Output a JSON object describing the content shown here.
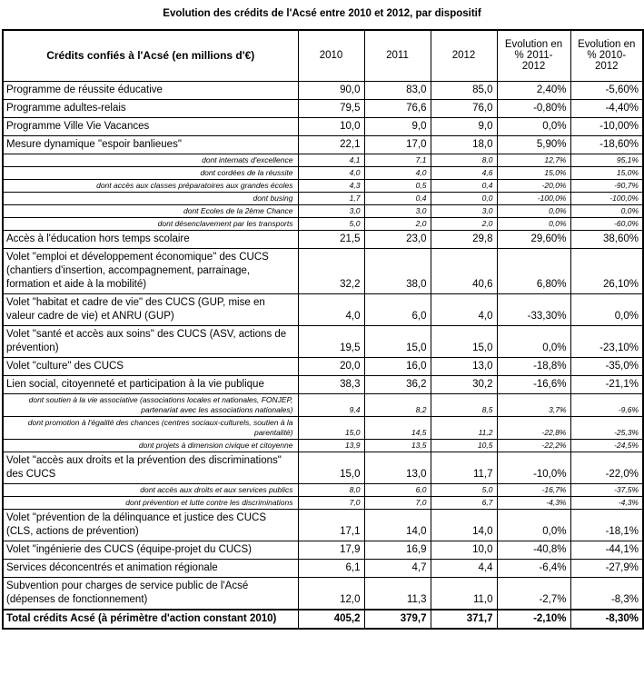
{
  "title": "Evolution des crédits de l'Acsé entre 2010 et 2012, par dispositif",
  "table": {
    "header": {
      "label": "Crédits confiés à l'Acsé (en millions d'€)",
      "col_2010": "2010",
      "col_2011": "2011",
      "col_2012": "2012",
      "evol_2011_2012": "Evolution en\n% 2011-\n2012",
      "evol_2010_2012": "Evolution en\n% 2010-\n2012"
    },
    "rows": [
      {
        "type": "main",
        "label": "Programme de réussite éducative",
        "values": [
          "90,0",
          "83,0",
          "85,0",
          "2,40%",
          "-5,60%"
        ]
      },
      {
        "type": "main",
        "label": "Programme adultes-relais",
        "values": [
          "79,5",
          "76,6",
          "76,0",
          "-0,80%",
          "-4,40%"
        ]
      },
      {
        "type": "main",
        "label": "Programme Ville Vie Vacances",
        "values": [
          "10,0",
          "9,0",
          "9,0",
          "0,0%",
          "-10,00%"
        ]
      },
      {
        "type": "main",
        "label": "Mesure dynamique \"espoir banlieues\"",
        "values": [
          "22,1",
          "17,0",
          "18,0",
          "5,90%",
          "-18,60%"
        ]
      },
      {
        "type": "sub",
        "label": "dont internats d'excellence",
        "values": [
          "4,1",
          "7,1",
          "8,0",
          "12,7%",
          "95,1%"
        ]
      },
      {
        "type": "sub",
        "label": "dont cordées de la réussite",
        "values": [
          "4,0",
          "4,0",
          "4,6",
          "15,0%",
          "15,0%"
        ]
      },
      {
        "type": "sub",
        "label": "dont accès aux classes préparatoires aux grandes écoles",
        "values": [
          "4,3",
          "0,5",
          "0,4",
          "-20,0%",
          "-90,7%"
        ]
      },
      {
        "type": "sub",
        "label": "dont busing",
        "values": [
          "1,7",
          "0,4",
          "0,0",
          "-100,0%",
          "-100,0%"
        ]
      },
      {
        "type": "sub",
        "label": "dont Ecoles de la 2ème Chance",
        "values": [
          "3,0",
          "3,0",
          "3,0",
          "0,0%",
          "0,0%"
        ]
      },
      {
        "type": "sub",
        "label": "dont désenclavement par les transports",
        "values": [
          "5,0",
          "2,0",
          "2,0",
          "0,0%",
          "-60,0%"
        ]
      },
      {
        "type": "main",
        "label": "Accès à l'éducation hors temps scolaire",
        "values": [
          "21,5",
          "23,0",
          "29,8",
          "29,60%",
          "38,60%"
        ]
      },
      {
        "type": "main",
        "label": "Volet \"emploi et développement économique\" des CUCS (chantiers d'insertion, accompagnement, parrainage, formation et aide à la mobilité)",
        "values": [
          "32,2",
          "38,0",
          "40,6",
          "6,80%",
          "26,10%"
        ]
      },
      {
        "type": "main",
        "label": "Volet \"habitat et cadre de vie\" des CUCS (GUP, mise en valeur cadre de vie) et ANRU (GUP)",
        "values": [
          "4,0",
          "6,0",
          "4,0",
          "-33,30%",
          "0,0%"
        ]
      },
      {
        "type": "main",
        "label": "Volet \"santé et accès aux soins\" des CUCS (ASV, actions de prévention)",
        "values": [
          "19,5",
          "15,0",
          "15,0",
          "0,0%",
          "-23,10%"
        ]
      },
      {
        "type": "main",
        "label": "Volet \"culture\" des CUCS",
        "values": [
          "20,0",
          "16,0",
          "13,0",
          "-18,8%",
          "-35,0%"
        ]
      },
      {
        "type": "main",
        "label": "Lien social, citoyenneté et participation à la vie publique",
        "values": [
          "38,3",
          "36,2",
          "30,2",
          "-16,6%",
          "-21,1%"
        ]
      },
      {
        "type": "sub",
        "label": "dont soutien à la vie associative (associations locales et nationales, FONJEP, partenariat avec les associations nationales)",
        "values": [
          "9,4",
          "8,2",
          "8,5",
          "3,7%",
          "-9,6%"
        ]
      },
      {
        "type": "sub",
        "label": "dont promotion à l'égalité des chances (centres sociaux-culturels, soutien à la parentalité)",
        "values": [
          "15,0",
          "14,5",
          "11,2",
          "-22,8%",
          "-25,3%"
        ]
      },
      {
        "type": "sub",
        "label": "dont projets à dimension civique et citoyenne",
        "values": [
          "13,9",
          "13,5",
          "10,5",
          "-22,2%",
          "-24,5%"
        ]
      },
      {
        "type": "main",
        "label": "Volet \"accès aux droits et la prévention des discriminations\" des CUCS",
        "values": [
          "15,0",
          "13,0",
          "11,7",
          "-10,0%",
          "-22,0%"
        ]
      },
      {
        "type": "sub",
        "label": "dont accès aux droits et aux services publics",
        "values": [
          "8,0",
          "6,0",
          "5,0",
          "-16,7%",
          "-37,5%"
        ]
      },
      {
        "type": "sub",
        "label": "dont prévention et lutte contre les discriminations",
        "values": [
          "7,0",
          "7,0",
          "6,7",
          "-4,3%",
          "-4,3%"
        ]
      },
      {
        "type": "main",
        "label": "Volet \"prévention de la délinquance et justice des CUCS (CLS, actions de prévention)",
        "values": [
          "17,1",
          "14,0",
          "14,0",
          "0,0%",
          "-18,1%"
        ]
      },
      {
        "type": "main",
        "label": "Volet \"ingénierie des CUCS (équipe-projet du CUCS)",
        "values": [
          "17,9",
          "16,9",
          "10,0",
          "-40,8%",
          "-44,1%"
        ]
      },
      {
        "type": "main",
        "label": "Services déconcentrés et animation régionale",
        "values": [
          "6,1",
          "4,7",
          "4,4",
          "-6,4%",
          "-27,9%"
        ]
      },
      {
        "type": "main",
        "label": "Subvention pour charges de service public de l'Acsé (dépenses de fonctionnement)",
        "values": [
          "12,0",
          "11,3",
          "11,0",
          "-2,7%",
          "-8,3%"
        ]
      },
      {
        "type": "total",
        "label": "Total crédits Acsé (à périmètre d'action constant 2010)",
        "values": [
          "405,2",
          "379,7",
          "371,7",
          "-2,10%",
          "-8,30%"
        ]
      }
    ]
  }
}
